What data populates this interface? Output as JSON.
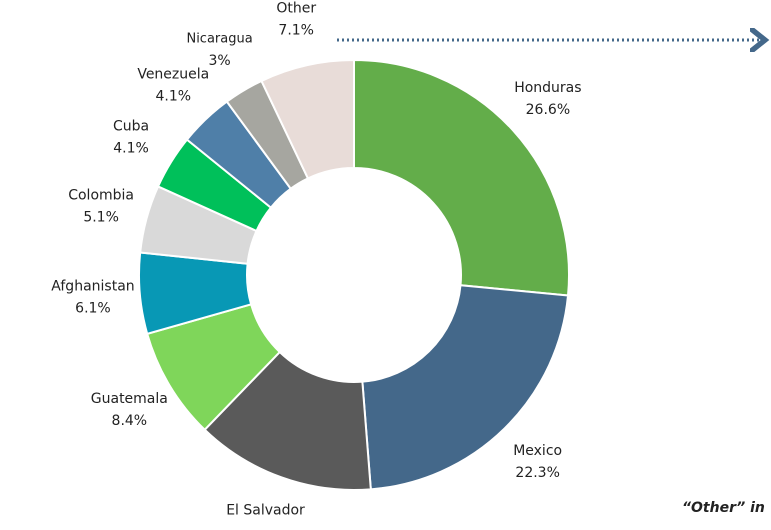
{
  "chart_data": {
    "type": "donut",
    "categories": [
      "Honduras",
      "Mexico",
      "El Salvador",
      "Guatemala",
      "Afghanistan",
      "Colombia",
      "Cuba",
      "Venezuela",
      "Nicaragua",
      "Other"
    ],
    "values": [
      26.6,
      22.3,
      13.5,
      8.4,
      6.1,
      5.1,
      4.1,
      4.1,
      3,
      7.1
    ],
    "value_labels": [
      "26.6%",
      "22.3%",
      "13.5%",
      "8.4%",
      "6.1%",
      "5.1%",
      "4.1%",
      "4.1%",
      "3%",
      "7.1%"
    ],
    "colors": [
      "#63ad4a",
      "#44688a",
      "#5a5a5a",
      "#7fd65a",
      "#0898b5",
      "#d9d9d9",
      "#00c05a",
      "#4f7fa8",
      "#a6a6a0",
      "#e8dcd8"
    ],
    "annotation": "“Other” in"
  }
}
